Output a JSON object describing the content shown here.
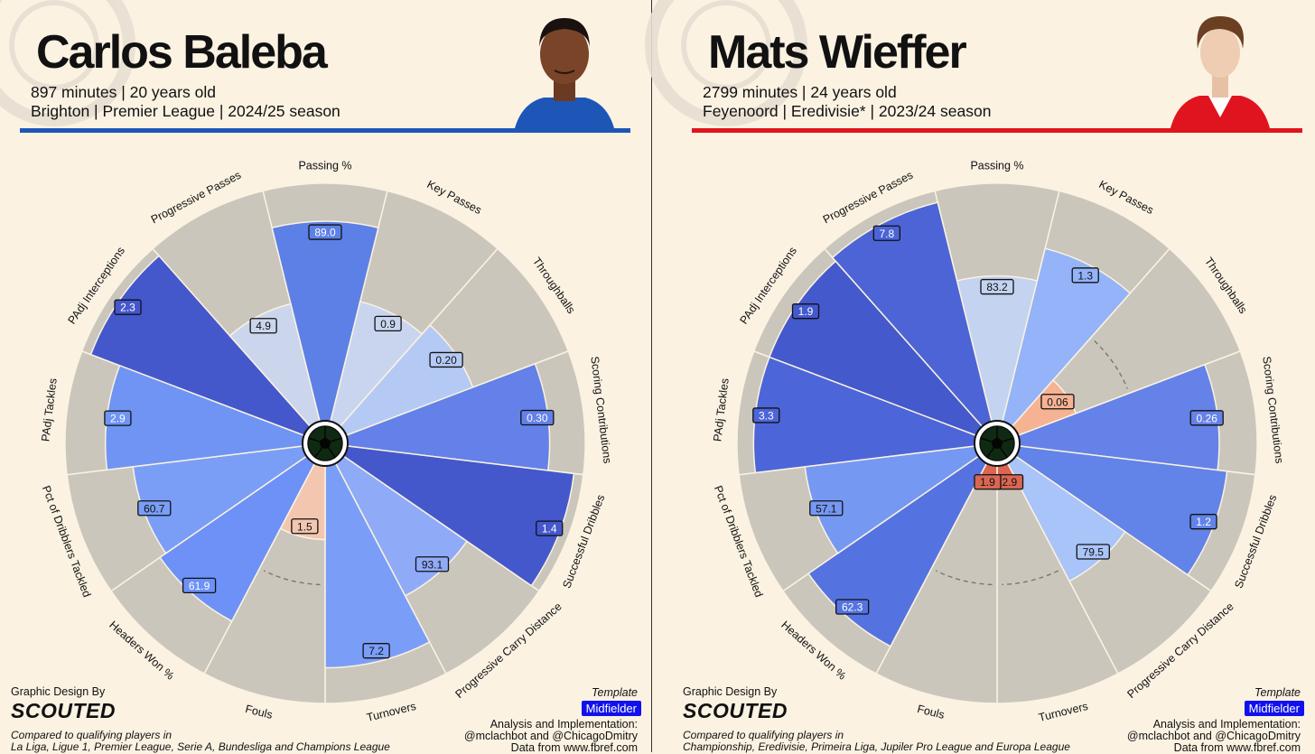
{
  "template": "Template",
  "template_badge": "Midfielder",
  "design_label": "Graphic Design By",
  "design_brand": "SCOUTED",
  "analysis_label": "Analysis and Implementation:",
  "analysis_credit": "@mclachbot and @ChicagoDmitry",
  "data_source": "Data from www.fbref.com",
  "compared_label": "Compared to qualifying players in",
  "players": [
    {
      "name": "Carlos Baleba",
      "line1": "897 minutes | 20 years old",
      "line2": "Brighton | Premier League | 2024/25 season",
      "club_color": "#1e56b8",
      "comparison": "La Liga, Ligue 1, Premier League, Serie A, Bundesliga and Champions League"
    },
    {
      "name": "Mats Wieffer",
      "line1": "2799 minutes | 24 years old",
      "line2": "Feyenoord | Eredivisie* | 2023/24 season",
      "club_color": "#e0141e",
      "comparison": "Championship, Eredivisie, Primeira Liga, Jupiler Pro League and Europa League"
    }
  ],
  "chart_data": [
    {
      "type": "radial-bar",
      "player": "Carlos Baleba",
      "scale": "percentile",
      "categories": [
        "Passing %",
        "Key Passes",
        "Throughballs",
        "Scoring Contributions",
        "Successful Dribbles",
        "Progressive Carry Distance",
        "Turnovers",
        "Fouls",
        "Headers Won %",
        "Pct of Dribblers Tackled",
        "PAdj Tackles",
        "PAdj Interceptions",
        "Progressive Passes"
      ],
      "values": [
        "89.0",
        "0.9",
        "0.20",
        "0.30",
        "1.4",
        "93.1",
        "7.2",
        "1.5",
        "61.9",
        "60.7",
        "2.9",
        "2.3",
        "4.9"
      ],
      "percentiles": [
        84,
        52,
        57,
        85,
        96,
        63,
        85,
        31,
        75,
        72,
        83,
        96,
        51
      ],
      "colors": [
        "#5d80e6",
        "#c9d5ef",
        "#b4caf5",
        "#6381e8",
        "#4458cc",
        "#8fabf8",
        "#7a9ef8",
        "#f3c6b0",
        "#6d91f6",
        "#7a9ef6",
        "#6f94f3",
        "#4458cc",
        "#cbd6ed"
      ]
    },
    {
      "type": "radial-bar",
      "player": "Mats Wieffer",
      "scale": "percentile",
      "categories": [
        "Passing %",
        "Key Passes",
        "Throughballs",
        "Scoring Contributions",
        "Successful Dribbles",
        "Progressive Carry Distance",
        "Turnovers",
        "Fouls",
        "Headers Won %",
        "Pct of Dribblers Tackled",
        "PAdj Tackles",
        "PAdj Interceptions",
        "Progressive Passes"
      ],
      "values": [
        "83.2",
        "1.3",
        "0.06",
        "0.26",
        "1.2",
        "79.5",
        "12.9",
        "1.9",
        "62.3",
        "57.1",
        "3.3",
        "1.9",
        "7.8"
      ],
      "percentiles": [
        61,
        75,
        26,
        84,
        88,
        56,
        7,
        7,
        87,
        72,
        93,
        93,
        95
      ],
      "colors": [
        "#c3d3f0",
        "#94b3f8",
        "#f5b394",
        "#6582e8",
        "#6283e8",
        "#a9c4f9",
        "#d86652",
        "#d86652",
        "#5573e0",
        "#7598f2",
        "#4c65d8",
        "#4459cc",
        "#4c64d6"
      ]
    }
  ]
}
